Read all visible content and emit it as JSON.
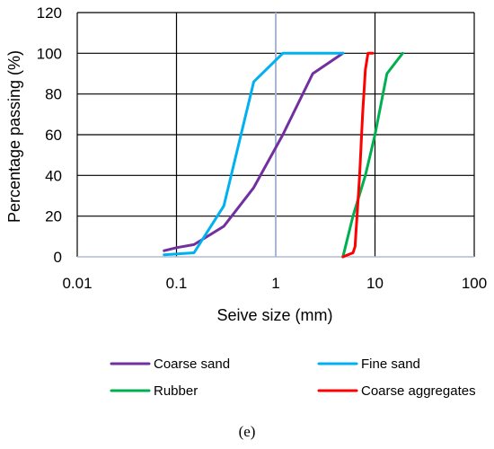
{
  "chart_data": {
    "type": "line",
    "x_scale": "log",
    "xlim": [
      0.01,
      100
    ],
    "ylim": [
      0,
      120
    ],
    "x_ticks": [
      "0.01",
      "0.1",
      "1",
      "10",
      "100"
    ],
    "y_ticks": [
      "0",
      "20",
      "40",
      "60",
      "80",
      "100",
      "120"
    ],
    "xlabel": "Seive size (mm)",
    "ylabel": "Percentage passing (%)",
    "grid": true,
    "legend_position": "bottom",
    "series": [
      {
        "name": "Coarse sand",
        "color": "#7030A0",
        "points": [
          [
            0.075,
            3
          ],
          [
            0.1,
            4.5
          ],
          [
            0.15,
            6
          ],
          [
            0.3,
            15
          ],
          [
            0.6,
            34
          ],
          [
            1.18,
            60
          ],
          [
            2.36,
            90
          ],
          [
            4.75,
            100
          ]
        ]
      },
      {
        "name": "Fine sand",
        "color": "#00B0F0",
        "points": [
          [
            0.075,
            1
          ],
          [
            0.15,
            2
          ],
          [
            0.3,
            25
          ],
          [
            0.6,
            86
          ],
          [
            1.18,
            100
          ],
          [
            4.75,
            100
          ]
        ]
      },
      {
        "name": "Rubber",
        "color": "#00B050",
        "points": [
          [
            4.75,
            0
          ],
          [
            6,
            20
          ],
          [
            8,
            40
          ],
          [
            10,
            60
          ],
          [
            13.2,
            90
          ],
          [
            19,
            100
          ]
        ]
      },
      {
        "name": "Coarse aggregates",
        "color": "#FF0000",
        "points": [
          [
            4.75,
            0
          ],
          [
            6,
            2
          ],
          [
            6.3,
            5
          ],
          [
            7,
            40
          ],
          [
            7.5,
            70
          ],
          [
            8,
            92
          ],
          [
            8.5,
            100
          ],
          [
            9.5,
            100
          ]
        ]
      }
    ]
  },
  "caption": "(e)",
  "colors": {
    "grid": "#000000",
    "ref_line": "#A6B6D3",
    "axis_base": "#B0BCD4"
  }
}
